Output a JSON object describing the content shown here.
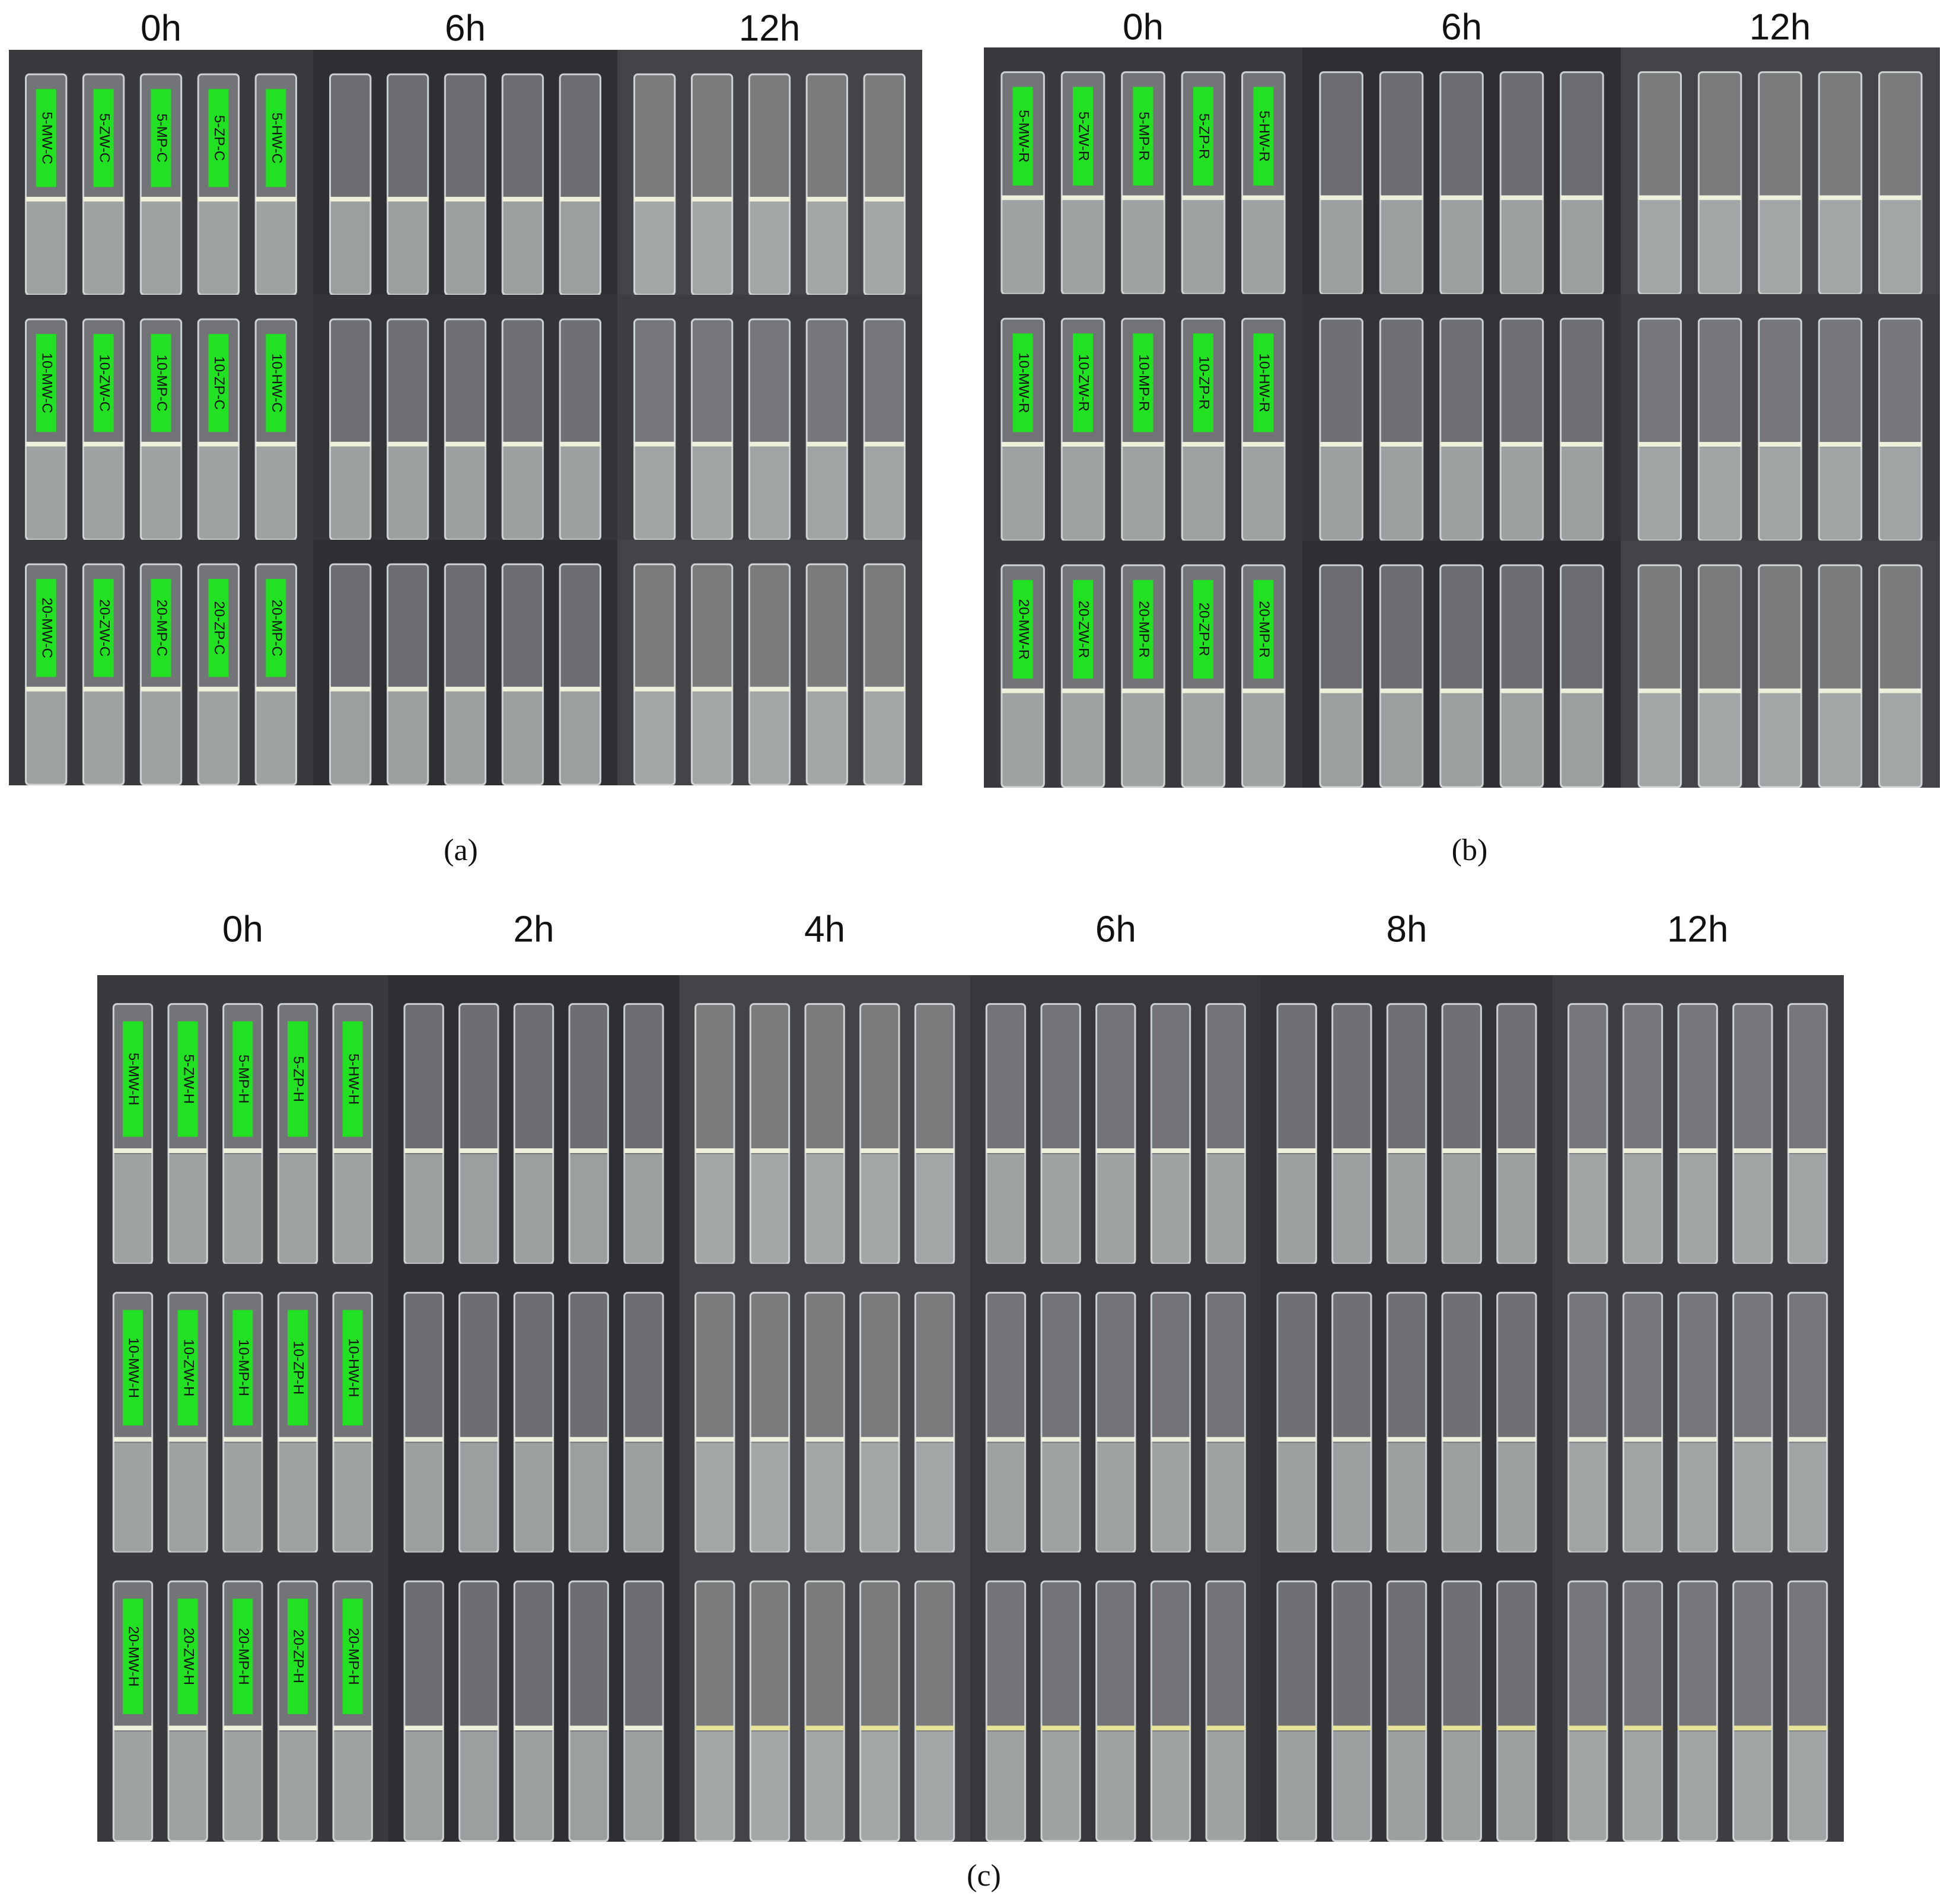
{
  "panels": [
    {
      "caption": "(a)",
      "times": [
        "0h",
        "6h",
        "12h"
      ],
      "rows": [
        [
          "5-MW-C",
          "5-ZW-C",
          "5-MP-C",
          "5-ZP-C",
          "5-HW-C"
        ],
        [
          "10-MW-C",
          "10-ZW-C",
          "10-MP-C",
          "10-ZP-C",
          "10-HW-C"
        ],
        [
          "20-MW-C",
          "20-ZW-C",
          "20-MP-C",
          "20-ZP-C",
          "20-MP-C"
        ]
      ]
    },
    {
      "caption": "(b)",
      "times": [
        "0h",
        "6h",
        "12h"
      ],
      "rows": [
        [
          "5-MW-R",
          "5-ZW-R",
          "5-MP-R",
          "5-ZP-R",
          "5-HW-R"
        ],
        [
          "10-MW-R",
          "10-ZW-R",
          "10-MP-R",
          "10-ZP-R",
          "10-HW-R"
        ],
        [
          "20-MW-R",
          "20-ZW-R",
          "20-MP-R",
          "20-ZP-R",
          "20-MP-R"
        ]
      ]
    },
    {
      "caption": "(c)",
      "times": [
        "0h",
        "2h",
        "4h",
        "6h",
        "8h",
        "12h"
      ],
      "rows": [
        [
          "5-MW-H",
          "5-ZW-H",
          "5-MP-H",
          "5-ZP-H",
          "5-HW-H"
        ],
        [
          "10-MW-H",
          "10-ZW-H",
          "10-MP-H",
          "10-ZP-H",
          "10-HW-H"
        ],
        [
          "20-MW-H",
          "20-ZW-H",
          "20-MP-H",
          "20-ZP-H",
          "20-MP-H"
        ]
      ]
    }
  ]
}
